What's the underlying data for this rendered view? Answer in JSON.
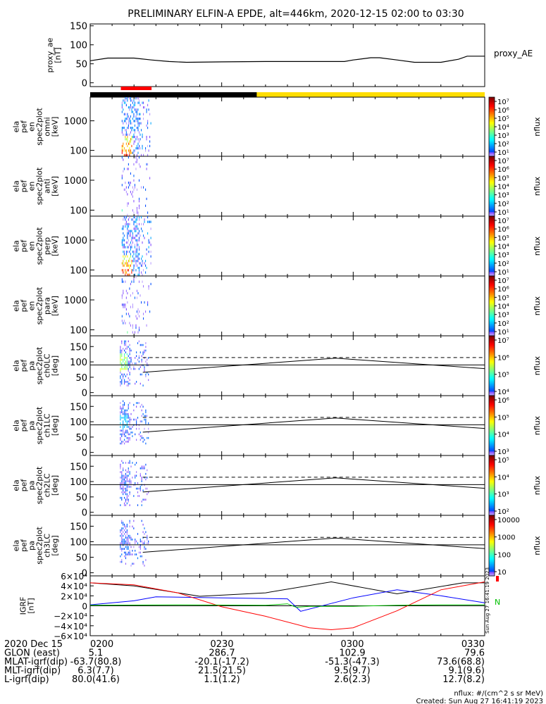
{
  "title": "PRELIMINARY ELFIN-A EPDE, alt=446km, 2020-12-15 02:00 to 03:30",
  "colors": {
    "axis": "#000000",
    "proxy_line": "#000000",
    "night_bar": "#000000",
    "day_bar": "#ffdd00",
    "science_zone": "#ff0000",
    "igrf_x": "#000000",
    "igrf_y": "#0000ff",
    "igrf_z": "#ff0000",
    "igrf_total": "#00c000"
  },
  "time_axis": {
    "labels": [
      "0200",
      "0230",
      "0300",
      "0330"
    ],
    "range_min": [
      0,
      90
    ]
  },
  "top_bar": {
    "night_until_min": 38,
    "zone_start_min": 7,
    "zone_end_min": 14
  },
  "proxy_ae": {
    "ylabel": "proxy_ae\n[nT]",
    "series_label": "proxy_AE",
    "ticks": [
      "150",
      "100",
      "50",
      "0"
    ],
    "ylim": [
      -10,
      155
    ]
  },
  "spec_panels": [
    {
      "ylabel": "ela\npef\nen\nspec2plot\nomni\n[keV]",
      "ticks": [
        "1000",
        "100"
      ],
      "colorbar": {
        "label": "nflux",
        "ticks": [
          "10⁷",
          "10⁶",
          "10⁵",
          "10⁴",
          "10³",
          "10²",
          "10¹"
        ]
      }
    },
    {
      "ylabel": "ela\npef\nen\nspec2plot\nanti\n[keV]",
      "ticks": [
        "1000",
        "100"
      ],
      "colorbar": {
        "label": "nflux",
        "ticks": [
          "10⁷",
          "10⁶",
          "10⁵",
          "10⁴",
          "10³",
          "10²",
          "10¹"
        ]
      }
    },
    {
      "ylabel": "ela\npef\nen\nspec2plot\nperp\n[keV]",
      "ticks": [
        "1000",
        "100"
      ],
      "colorbar": {
        "label": "nflux",
        "ticks": [
          "10⁷",
          "10⁶",
          "10⁵",
          "10⁴",
          "10³",
          "10²",
          "10¹"
        ]
      }
    },
    {
      "ylabel": "ela\npef\nen\nspec2plot\npara\n[keV]",
      "ticks": [
        "1000",
        "100"
      ],
      "colorbar": {
        "label": "nflux",
        "ticks": [
          "10⁷",
          "10⁶",
          "10⁵",
          "10⁴",
          "10³",
          "10²",
          "10¹"
        ]
      }
    }
  ],
  "pa_panels": [
    {
      "ylabel": "ela\npef\npa\nspec2plot\nch0LC\n[deg]",
      "ticks": [
        "150",
        "100",
        "50",
        "0"
      ],
      "colorbar": {
        "label": "nflux",
        "ticks": [
          "10⁷",
          "10⁶",
          "10⁵",
          "10⁴"
        ]
      }
    },
    {
      "ylabel": "ela\npef\npa\nspec2plot\nch1LC\n[deg]",
      "ticks": [
        "150",
        "100",
        "50",
        "0"
      ],
      "colorbar": {
        "label": "nflux",
        "ticks": [
          "10⁶",
          "10⁵",
          "10⁴",
          "10³"
        ]
      }
    },
    {
      "ylabel": "ela\npef\npa\nspec2plot\nch2LC\n[deg]",
      "ticks": [
        "150",
        "100",
        "50",
        "0"
      ],
      "colorbar": {
        "label": "nflux",
        "ticks": [
          "10⁵",
          "10⁴",
          "10³",
          "10²"
        ]
      }
    },
    {
      "ylabel": "ela\npef\npa\nspec2plot\nch3LC\n[deg]",
      "ticks": [
        "150",
        "100",
        "50",
        "0"
      ],
      "colorbar": {
        "label": "nflux",
        "ticks": [
          "10000",
          "1000",
          "100",
          "10"
        ]
      }
    }
  ],
  "igrf": {
    "ylabel": "IGRF\n[nT]",
    "ticks": [
      "6×10⁴",
      "4×10⁴",
      "2×10⁴",
      "0",
      "−2×10⁴",
      "−4×10⁴",
      "−6×10⁴"
    ],
    "ylim": [
      -60000,
      60000
    ],
    "right_label": "N",
    "side_stamp": "Sun Aug 27 16:41:19 2023"
  },
  "ephemeris": {
    "rows": [
      {
        "label": "2020 Dec 15",
        "values": [
          "0200",
          "0230",
          "0300",
          "0330"
        ]
      },
      {
        "label": "GLON (east)",
        "values": [
          "5.1",
          "286.7",
          "102.9",
          "79.6"
        ]
      },
      {
        "label": "MLAT-igrf(dip)",
        "values": [
          "-63.7(80.8)",
          "-20.1(-17.2)",
          "-51.3(-47.3)",
          "73.6(68.8)"
        ]
      },
      {
        "label": "MLT-igrf(dip)",
        "values": [
          "6.3(7.7)",
          "21.5(21.5)",
          "9.5(9.7)",
          "9.1(9.6)"
        ]
      },
      {
        "label": "L-igrf(dip)",
        "values": [
          "80.0(41.6)",
          "1.1(1.2)",
          "2.6(2.3)",
          "12.7(8.2)"
        ]
      }
    ]
  },
  "footer": {
    "units": "nflux: #/(cm^2 s sr MeV)",
    "created": "Created: Sun Aug 27 16:41:19 2023"
  },
  "chart_data": [
    {
      "type": "line",
      "series": [
        {
          "name": "proxy_AE",
          "x": [
            0,
            4,
            10,
            14,
            18,
            22,
            30,
            40,
            50,
            58,
            60,
            64,
            66,
            70,
            74,
            80,
            84,
            86,
            90
          ],
          "values": [
            58,
            65,
            65,
            60,
            56,
            54,
            55,
            56,
            56,
            56,
            60,
            66,
            66,
            60,
            54,
            54,
            62,
            70,
            70
          ]
        }
      ],
      "ylim": [
        -10,
        155
      ],
      "xlim": [
        0,
        90
      ]
    },
    {
      "type": "heatmap",
      "note_cols_min": [
        6,
        15
      ],
      "channels": [
        "omni",
        "anti",
        "perp",
        "para"
      ],
      "energy_range_keV": [
        60,
        7000
      ]
    },
    {
      "type": "line",
      "panels": [
        "ch0LC",
        "ch1LC",
        "ch2LC",
        "ch3LC"
      ],
      "ylim": [
        -10,
        185
      ],
      "reference_deg": 90,
      "loss_cone_dashed": {
        "x": [
          12,
          90
        ],
        "values": [
          114,
          114
        ]
      },
      "loss_cone_solid": {
        "x": [
          12,
          56,
          90
        ],
        "values": [
          66,
          112,
          78
        ]
      }
    },
    {
      "type": "line",
      "ylim": [
        -60000,
        60000
      ],
      "series": [
        {
          "name": "",
          "color_key": "igrf_x",
          "x": [
            0,
            10,
            25,
            40,
            55,
            70,
            85,
            90
          ],
          "values": [
            46000,
            40000,
            19000,
            26000,
            48000,
            24000,
            46000,
            46000
          ]
        },
        {
          "name": "",
          "color_key": "igrf_y",
          "x": [
            0,
            10,
            15,
            30,
            45,
            48,
            60,
            70,
            80,
            90
          ],
          "values": [
            2000,
            10000,
            18000,
            16000,
            14000,
            -11000,
            16000,
            32000,
            20000,
            6000
          ]
        },
        {
          "name": "",
          "color_key": "igrf_z",
          "x": [
            0,
            10,
            20,
            30,
            40,
            50,
            55,
            60,
            70,
            80,
            90
          ],
          "values": [
            46000,
            42000,
            26000,
            -2000,
            -21000,
            -44000,
            -48000,
            -44000,
            -10000,
            32000,
            48000
          ]
        },
        {
          "name": "",
          "color_key": "igrf_total",
          "x": [
            0,
            20,
            40,
            45,
            47,
            50,
            60,
            70,
            80,
            90
          ],
          "values": [
            1000,
            2000,
            1000,
            4000,
            -3000,
            -1000,
            -1000,
            1000,
            2000,
            2000
          ]
        }
      ]
    }
  ]
}
